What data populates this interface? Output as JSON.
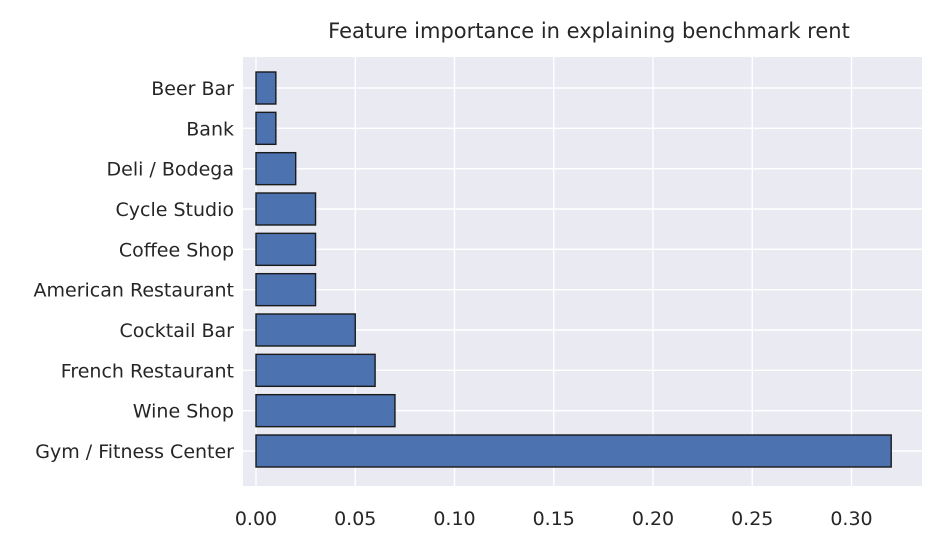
{
  "chart_data": {
    "type": "bar",
    "orientation": "horizontal",
    "title": "Feature importance in explaining benchmark rent",
    "xlabel": "",
    "ylabel": "",
    "categories": [
      "Beer Bar",
      "Bank",
      "Deli / Bodega",
      "Cycle Studio",
      "Coffee Shop",
      "American Restaurant",
      "Cocktail Bar",
      "French Restaurant",
      "Wine Shop",
      "Gym / Fitness Center"
    ],
    "values": [
      0.01,
      0.01,
      0.02,
      0.03,
      0.03,
      0.03,
      0.05,
      0.06,
      0.07,
      0.32
    ],
    "xlim": [
      0.0,
      0.335
    ],
    "xticks": [
      0.0,
      0.05,
      0.1,
      0.15,
      0.2,
      0.25,
      0.3
    ],
    "xtick_labels": [
      "0.00",
      "0.05",
      "0.10",
      "0.15",
      "0.20",
      "0.25",
      "0.30"
    ],
    "grid": true,
    "legend": "none",
    "colors": {
      "bar": "#4c72b0",
      "plot_background": "#eaeaf2",
      "grid": "#ffffff"
    }
  }
}
